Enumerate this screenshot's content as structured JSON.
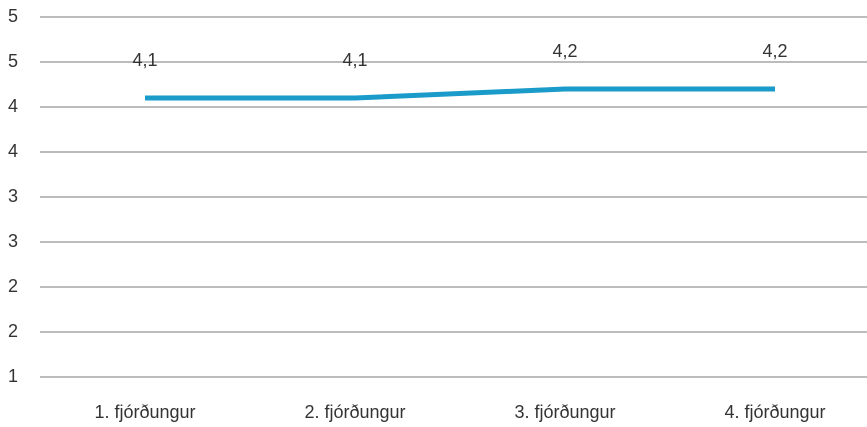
{
  "chart_data": {
    "type": "line",
    "categories": [
      "1. fjórðungur",
      "2. fjórðungur",
      "3. fjórðungur",
      "4. fjórðungur"
    ],
    "series": [
      {
        "name": null,
        "color": "#1b9bc9",
        "values": [
          4.1,
          4.1,
          4.2,
          4.2
        ],
        "value_labels": [
          "4,1",
          "4,1",
          "4,2",
          "4,2"
        ]
      }
    ],
    "ylim": [
      1,
      5
    ],
    "yticks": [
      1,
      {
        "value": 1.5,
        "label": "2"
      },
      2,
      {
        "value": 2.5,
        "label": "3"
      },
      3,
      {
        "value": 3.5,
        "label": "4"
      },
      4,
      {
        "value": 4.5,
        "label": "5"
      },
      5
    ],
    "grid": true
  }
}
